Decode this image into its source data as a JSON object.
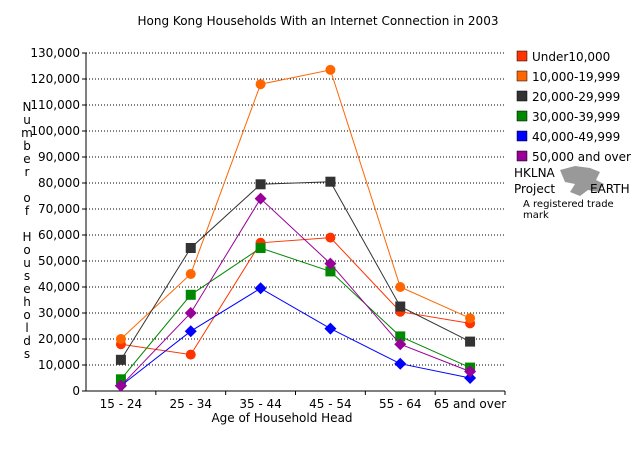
{
  "chart_data": {
    "type": "line",
    "title": "Hong Kong Households With an Internet Connection in 2003",
    "xlabel": "Age of Household Head",
    "ylabel": "Number of Households",
    "categories": [
      "15 - 24",
      "25 - 34",
      "35 - 44",
      "45 - 54",
      "55 - 64",
      "65 and over"
    ],
    "ylim": [
      0,
      130000
    ],
    "yticks": [
      "0",
      "10,000",
      "20,000",
      "30,000",
      "40,000",
      "50,000",
      "60,000",
      "70,000",
      "80,000",
      "90,000",
      "100,000",
      "110,000",
      "120,000",
      "130,000"
    ],
    "grid": true,
    "legend_position": "right",
    "series": [
      {
        "name": "Under10,000",
        "color": "#ff3300",
        "marker": "circle",
        "values": [
          18000,
          14000,
          57000,
          59000,
          30500,
          26000
        ]
      },
      {
        "name": "10,000-19,999",
        "color": "#ff6600",
        "marker": "circle",
        "values": [
          20000,
          45000,
          118000,
          123500,
          40000,
          28000
        ]
      },
      {
        "name": "20,000-29,999",
        "color": "#333333",
        "marker": "square",
        "values": [
          12000,
          55000,
          79500,
          80500,
          32500,
          19000
        ]
      },
      {
        "name": "30,000-39,999",
        "color": "#008800",
        "marker": "square",
        "values": [
          4500,
          37000,
          55000,
          46000,
          21000,
          9000
        ]
      },
      {
        "name": "40,000-49,999",
        "color": "#0000ff",
        "marker": "diamond",
        "values": [
          2000,
          23000,
          39500,
          24000,
          10500,
          5000
        ]
      },
      {
        "name": "50,000 and over",
        "color": "#990099",
        "marker": "diamond",
        "values": [
          2000,
          30000,
          74000,
          49000,
          18000,
          7500
        ]
      }
    ]
  },
  "logo": {
    "line1": "HKLNA",
    "line2a": "Project",
    "line2b": "EARTH",
    "tagline": "A registered trade mark"
  }
}
